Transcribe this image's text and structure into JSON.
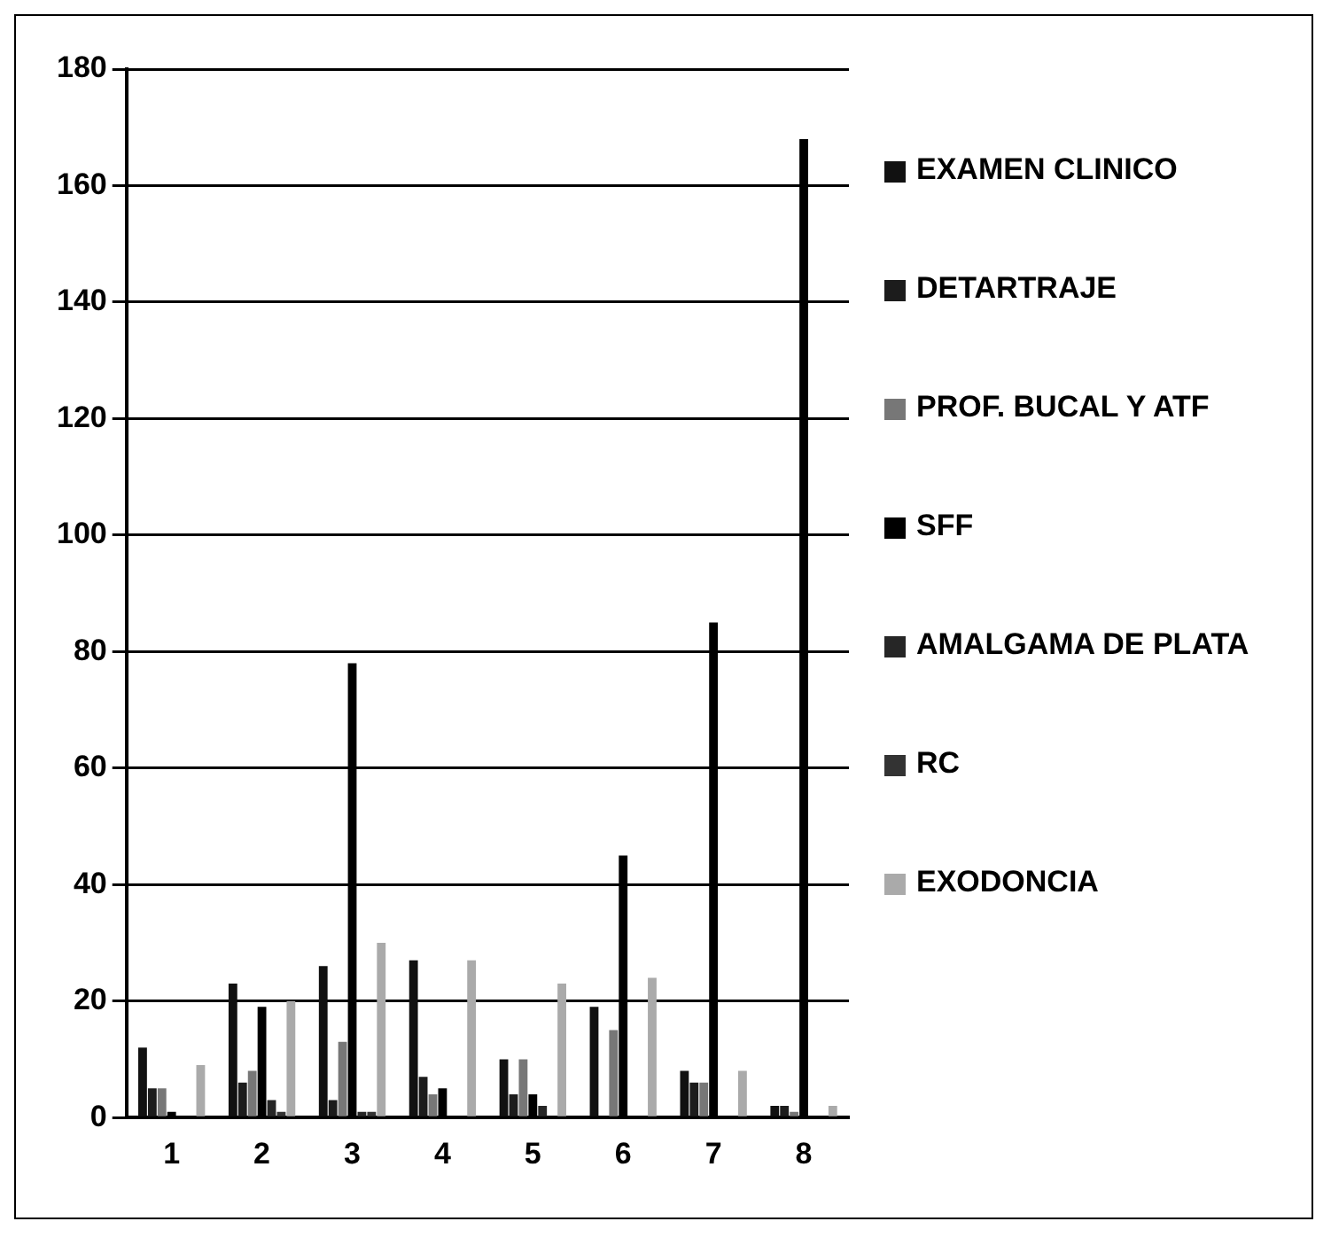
{
  "chart_data": {
    "type": "bar",
    "categories": [
      "1",
      "2",
      "3",
      "4",
      "5",
      "6",
      "7",
      "8"
    ],
    "series": [
      {
        "name": "EXAMEN CLINICO",
        "color": "#111111",
        "values": [
          12,
          23,
          26,
          27,
          10,
          19,
          8,
          2
        ]
      },
      {
        "name": "DETARTRAJE",
        "color": "#1c1c1c",
        "values": [
          5,
          6,
          3,
          7,
          4,
          0,
          6,
          2
        ]
      },
      {
        "name": "PROF. BUCAL Y ATF",
        "color": "#777777",
        "values": [
          5,
          8,
          13,
          4,
          10,
          15,
          6,
          1
        ]
      },
      {
        "name": "SFF",
        "color": "#000000",
        "values": [
          1,
          19,
          78,
          5,
          4,
          45,
          85,
          168
        ]
      },
      {
        "name": "AMALGAMA DE PLATA",
        "color": "#262626",
        "values": [
          0,
          3,
          1,
          0,
          2,
          0,
          0,
          0
        ]
      },
      {
        "name": "RC",
        "color": "#333333",
        "values": [
          0,
          1,
          1,
          0,
          0,
          0,
          0,
          0
        ]
      },
      {
        "name": "EXODONCIA",
        "color": "#aaaaaa",
        "values": [
          9,
          20,
          30,
          27,
          23,
          24,
          8,
          2
        ]
      }
    ],
    "ylim": [
      0,
      180
    ],
    "yticks": [
      0,
      20,
      40,
      60,
      80,
      100,
      120,
      140,
      160,
      180
    ],
    "grid": "y",
    "legend": "right"
  }
}
